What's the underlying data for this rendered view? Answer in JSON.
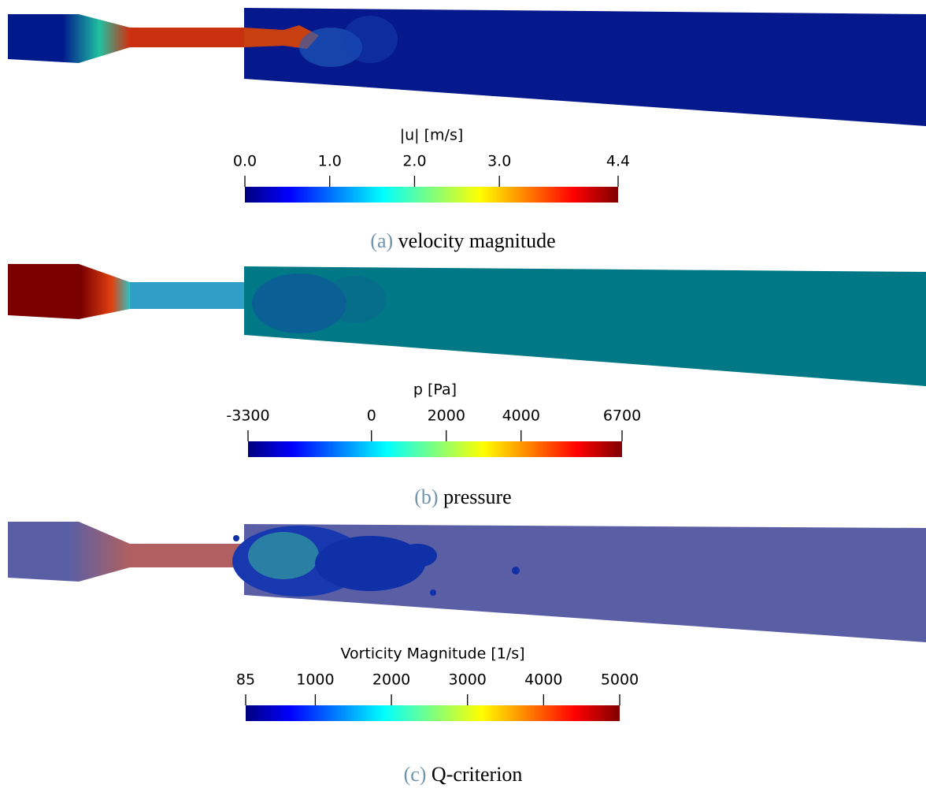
{
  "panels": [
    {
      "colorbar": {
        "label": "|u| [m/s]",
        "lim": [
          0,
          4.4
        ],
        "ticks": [
          {
            "value": 0,
            "label": "0.0"
          },
          {
            "value": 1,
            "label": "1.0"
          },
          {
            "value": 2,
            "label": "2.0"
          },
          {
            "value": 3,
            "label": "3.0"
          },
          4.4
        ]
      },
      "caption": {
        "label": "(a)",
        "text": "velocity magnitude"
      }
    },
    {
      "colorbar": {
        "label": "p [Pa]",
        "lim": [
          -3300,
          6700
        ],
        "ticks": [
          -3300,
          0,
          2000,
          4000,
          6700
        ]
      },
      "caption": {
        "label": "(b)",
        "text": "pressure"
      }
    },
    {
      "colorbar": {
        "label": "Vorticity Magnitude  [1/s]",
        "lim": [
          85,
          5000
        ],
        "ticks": [
          85,
          1000,
          2000,
          3000,
          4000,
          5000
        ]
      },
      "caption": {
        "label": "(c)",
        "text": "Q-criterion"
      }
    }
  ]
}
